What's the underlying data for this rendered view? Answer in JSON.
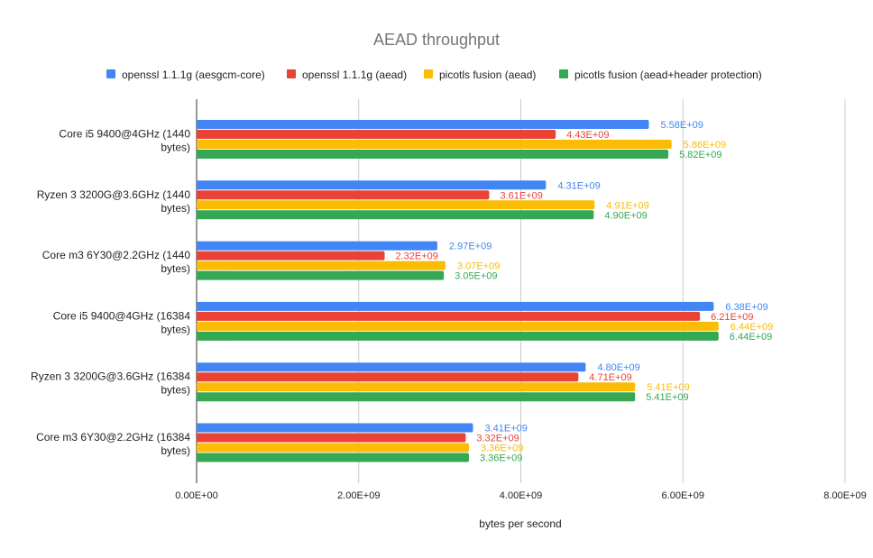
{
  "chart_data": {
    "type": "bar",
    "orientation": "horizontal",
    "title": "AEAD throughput",
    "xlabel": "bytes per second",
    "ylabel": "",
    "xlim": [
      0,
      8000000000
    ],
    "x_ticks": [
      0,
      2000000000,
      4000000000,
      6000000000,
      8000000000
    ],
    "x_tick_labels": [
      "0.00E+00",
      "2.00E+09",
      "4.00E+09",
      "6.00E+09",
      "8.00E+09"
    ],
    "grid": true,
    "legend_position": "top",
    "categories": [
      "Core i5 9400@4GHz (1440 bytes)",
      "Ryzen 3 3200G@3.6GHz (1440 bytes)",
      "Core m3 6Y30@2.2GHz (1440 bytes)",
      "Core i5 9400@4GHz (16384 bytes)",
      "Ryzen 3 3200G@3.6GHz (16384 bytes)",
      "Core m3 6Y30@2.2GHz (16384 bytes)"
    ],
    "category_lines": [
      [
        "Core i5 9400@4GHz (1440",
        "bytes)"
      ],
      [
        "Ryzen 3 3200G@3.6GHz (1440",
        "bytes)"
      ],
      [
        "Core m3 6Y30@2.2GHz (1440",
        "bytes)"
      ],
      [
        "Core i5 9400@4GHz (16384",
        "bytes)"
      ],
      [
        "Ryzen 3 3200G@3.6GHz (16384",
        "bytes)"
      ],
      [
        "Core m3 6Y30@2.2GHz (16384",
        "bytes)"
      ]
    ],
    "series": [
      {
        "name": "openssl 1.1.1g (aesgcm-core)",
        "color": "#4285f4",
        "values": [
          5580000000,
          4310000000,
          2970000000,
          6380000000,
          4800000000,
          3410000000
        ],
        "labels": [
          "5.58E+09",
          "4.31E+09",
          "2.97E+09",
          "6.38E+09",
          "4.80E+09",
          "3.41E+09"
        ]
      },
      {
        "name": "openssl 1.1.1g (aead)",
        "color": "#ea4335",
        "values": [
          4430000000,
          3610000000,
          2320000000,
          6210000000,
          4710000000,
          3320000000
        ],
        "labels": [
          "4.43E+09",
          "3.61E+09",
          "2.32E+09",
          "6.21E+09",
          "4.71E+09",
          "3.32E+09"
        ]
      },
      {
        "name": "picotls fusion (aead)",
        "color": "#fbbc04",
        "values": [
          5860000000,
          4910000000,
          3070000000,
          6440000000,
          5410000000,
          3360000000
        ],
        "labels": [
          "5.86E+09",
          "4.91E+09",
          "3.07E+09",
          "6.44E+09",
          "5.41E+09",
          "3.36E+09"
        ]
      },
      {
        "name": "picotls fusion (aead+header protection)",
        "color": "#34a853",
        "values": [
          5820000000,
          4900000000,
          3050000000,
          6440000000,
          5410000000,
          3360000000
        ],
        "labels": [
          "5.82E+09",
          "4.90E+09",
          "3.05E+09",
          "6.44E+09",
          "5.41E+09",
          "3.36E+09"
        ]
      }
    ]
  }
}
